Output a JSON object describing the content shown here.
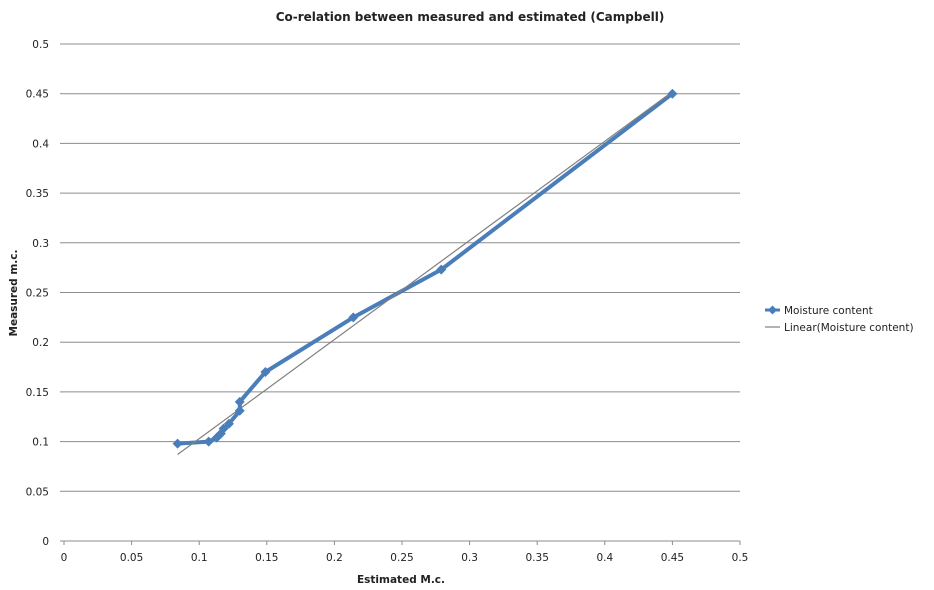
{
  "chart_data": {
    "type": "scatter",
    "title": "Co-relation between measured and estimated (Campbell)",
    "xlabel": "Estimated M.c.",
    "ylabel": "Measured m.c.",
    "xlim": [
      0,
      0.5
    ],
    "ylim": [
      0,
      0.5
    ],
    "x_ticks": [
      "0",
      "0.05",
      "0.1",
      "0.15",
      "0.2",
      "0.25",
      "0.3",
      "0.35",
      "0.4",
      "0.45",
      "0.5"
    ],
    "y_ticks": [
      "0",
      "0.05",
      "0.1",
      "0.15",
      "0.2",
      "0.25",
      "0.3",
      "0.35",
      "0.4",
      "0.45",
      "0.5"
    ],
    "grid": "horizontal",
    "legend_position": "right",
    "series": [
      {
        "name": "Moisture content",
        "color": "#4a7ebb",
        "marker": "diamond",
        "connected": true,
        "points": [
          {
            "x": 0.084,
            "y": 0.098
          },
          {
            "x": 0.107,
            "y": 0.1
          },
          {
            "x": 0.113,
            "y": 0.104
          },
          {
            "x": 0.116,
            "y": 0.108
          },
          {
            "x": 0.118,
            "y": 0.113
          },
          {
            "x": 0.122,
            "y": 0.118
          },
          {
            "x": 0.13,
            "y": 0.131
          },
          {
            "x": 0.13,
            "y": 0.14
          },
          {
            "x": 0.149,
            "y": 0.17
          },
          {
            "x": 0.214,
            "y": 0.225
          },
          {
            "x": 0.279,
            "y": 0.273
          },
          {
            "x": 0.45,
            "y": 0.45
          }
        ]
      },
      {
        "name": "Linear(Moisture content)",
        "color": "#808080",
        "type": "trendline",
        "points": [
          {
            "x": 0.084,
            "y": 0.087
          },
          {
            "x": 0.45,
            "y": 0.452
          }
        ]
      }
    ]
  }
}
